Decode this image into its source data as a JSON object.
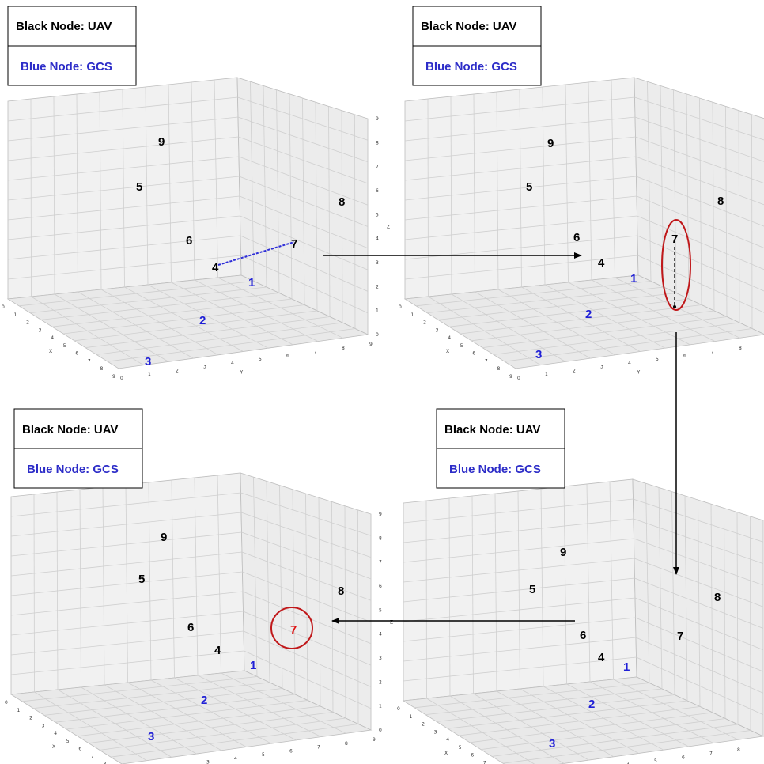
{
  "legend": {
    "uav_label": "Black Node: UAV",
    "gcs_label": "Blue Node: GCS"
  },
  "colors": {
    "uav_node": "#000000",
    "gcs_node": "#1f1fd6",
    "link": "#2d2dd8",
    "highlight": "#c0181a",
    "highlighted_node": "#e01010"
  },
  "axes": {
    "x_label": "X",
    "y_label": "Y",
    "z_label": "Z",
    "ticks": [
      "0",
      "1",
      "2",
      "3",
      "4",
      "5",
      "6",
      "7",
      "8",
      "9"
    ]
  },
  "panels": [
    {
      "id": "top-left",
      "nodes": [
        {
          "label": "9",
          "type": "uav"
        },
        {
          "label": "5",
          "type": "uav"
        },
        {
          "label": "6",
          "type": "uav"
        },
        {
          "label": "8",
          "type": "uav"
        },
        {
          "label": "7",
          "type": "uav"
        },
        {
          "label": "4",
          "type": "uav"
        },
        {
          "label": "1",
          "type": "gcs"
        },
        {
          "label": "2",
          "type": "gcs"
        },
        {
          "label": "3",
          "type": "gcs"
        }
      ],
      "links": [
        {
          "from": "4",
          "to": "7",
          "style": "dotted-blue"
        }
      ]
    },
    {
      "id": "top-right",
      "nodes": [
        {
          "label": "9",
          "type": "uav"
        },
        {
          "label": "5",
          "type": "uav"
        },
        {
          "label": "6",
          "type": "uav"
        },
        {
          "label": "8",
          "type": "uav"
        },
        {
          "label": "7",
          "type": "uav"
        },
        {
          "label": "4",
          "type": "uav"
        },
        {
          "label": "1",
          "type": "gcs"
        },
        {
          "label": "2",
          "type": "gcs"
        },
        {
          "label": "3",
          "type": "gcs"
        }
      ],
      "highlight": "node 7 descending (ellipse)"
    },
    {
      "id": "bottom-right",
      "nodes": [
        {
          "label": "9",
          "type": "uav"
        },
        {
          "label": "5",
          "type": "uav"
        },
        {
          "label": "6",
          "type": "uav"
        },
        {
          "label": "8",
          "type": "uav"
        },
        {
          "label": "7",
          "type": "uav"
        },
        {
          "label": "4",
          "type": "uav"
        },
        {
          "label": "1",
          "type": "gcs"
        },
        {
          "label": "2",
          "type": "gcs"
        },
        {
          "label": "3",
          "type": "gcs"
        }
      ]
    },
    {
      "id": "bottom-left",
      "nodes": [
        {
          "label": "9",
          "type": "uav"
        },
        {
          "label": "5",
          "type": "uav"
        },
        {
          "label": "6",
          "type": "uav"
        },
        {
          "label": "8",
          "type": "uav"
        },
        {
          "label": "7",
          "type": "highlighted"
        },
        {
          "label": "4",
          "type": "uav"
        },
        {
          "label": "1",
          "type": "gcs"
        },
        {
          "label": "2",
          "type": "gcs"
        },
        {
          "label": "3",
          "type": "gcs"
        }
      ],
      "highlight": "node 7 circled"
    }
  ],
  "flow": [
    "top-left",
    "top-right",
    "bottom-right",
    "bottom-left"
  ]
}
